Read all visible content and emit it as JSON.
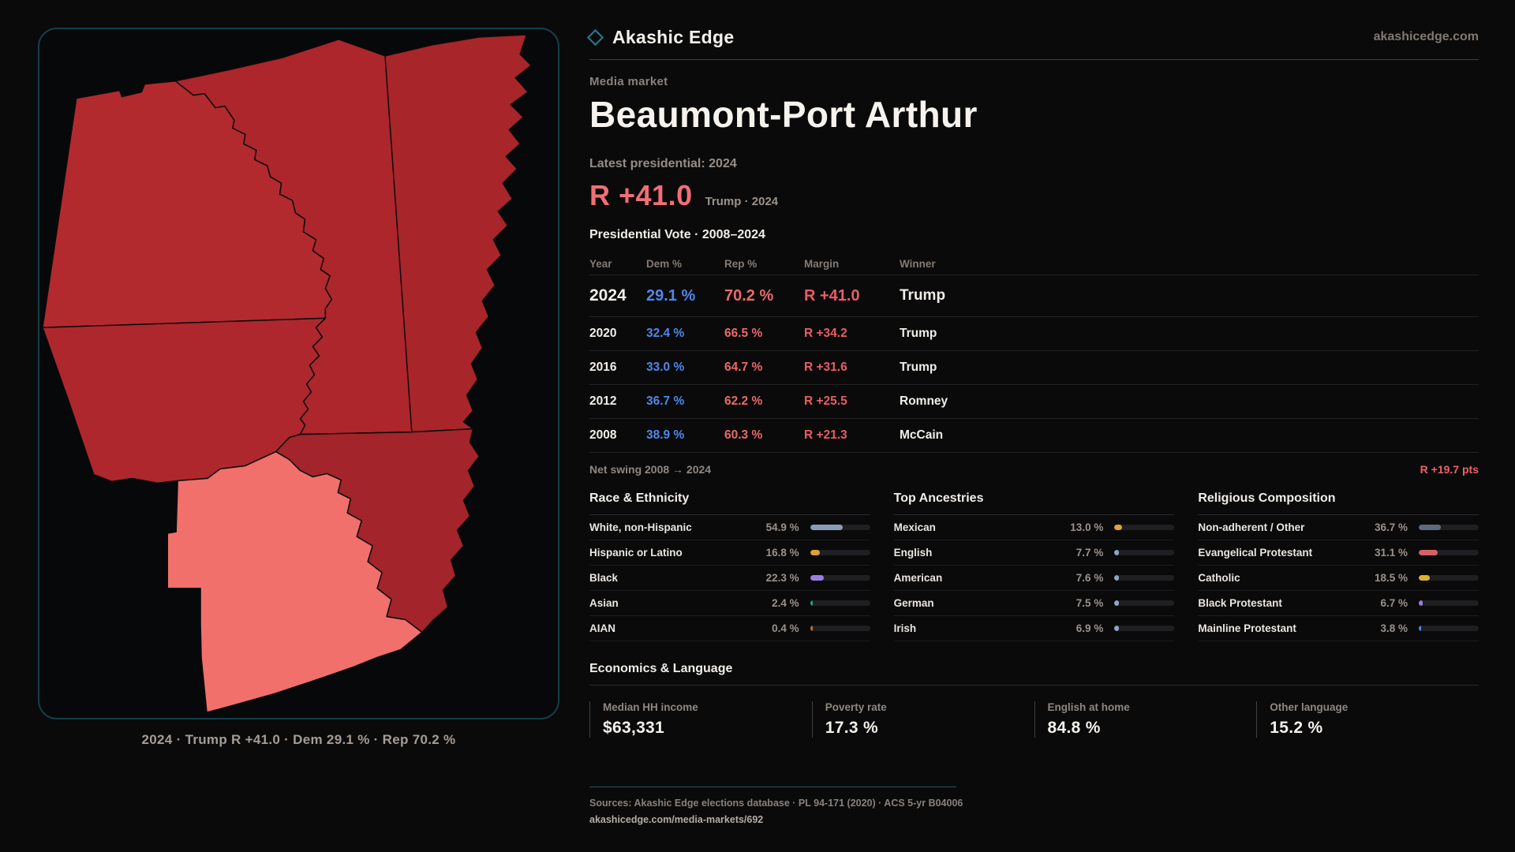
{
  "brand": {
    "name": "Akashic Edge",
    "domain": "akashicedge.com",
    "accent_teal": "#2d7a89"
  },
  "page": {
    "kicker": "Media market",
    "title": "Beaumont-Port Arthur",
    "latest_label": "Latest presidential: 2024",
    "headline_margin": "R +41.0",
    "headline_context": "Trump · 2024",
    "table_title": "Presidential Vote · 2008–2024"
  },
  "map": {
    "caption": "2024 · Trump R +41.0 · Dem 29.1 % · Rep 70.2 %",
    "county_colors": [
      "#b32a2e",
      "#ac262b",
      "#a8252a",
      "#ae272c",
      "#a3242a",
      "#f1706b"
    ]
  },
  "vote_table": {
    "columns": [
      "Year",
      "Dem %",
      "Rep %",
      "Margin",
      "Winner"
    ],
    "rows": [
      {
        "year": "2024",
        "dem": "29.1 %",
        "rep": "70.2 %",
        "margin": "R +41.0",
        "winner": "Trump"
      },
      {
        "year": "2020",
        "dem": "32.4 %",
        "rep": "66.5 %",
        "margin": "R +34.2",
        "winner": "Trump"
      },
      {
        "year": "2016",
        "dem": "33.0 %",
        "rep": "64.7 %",
        "margin": "R +31.6",
        "winner": "Trump"
      },
      {
        "year": "2012",
        "dem": "36.7 %",
        "rep": "62.2 %",
        "margin": "R +25.5",
        "winner": "Romney"
      },
      {
        "year": "2008",
        "dem": "38.9 %",
        "rep": "60.3 %",
        "margin": "R +21.3",
        "winner": "McCain"
      }
    ],
    "net_swing_label": "Net swing 2008 → 2024",
    "net_swing_value": "R +19.7 pts"
  },
  "race": {
    "title": "Race & Ethnicity",
    "rows": [
      {
        "label": "White, non-Hispanic",
        "value": "54.9 %",
        "pct": 54.9,
        "color": "#8b9cb8"
      },
      {
        "label": "Hispanic or Latino",
        "value": "16.8 %",
        "pct": 16.8,
        "color": "#dfa03b"
      },
      {
        "label": "Black",
        "value": "22.3 %",
        "pct": 22.3,
        "color": "#9c7ee2"
      },
      {
        "label": "Asian",
        "value": "2.4 %",
        "pct": 2.4,
        "color": "#27a186"
      },
      {
        "label": "AIAN",
        "value": "0.4 %",
        "pct": 0.4,
        "color": "#bf7030"
      }
    ]
  },
  "ancestries": {
    "title": "Top Ancestries",
    "rows": [
      {
        "label": "Mexican",
        "value": "13.0 %",
        "pct": 13.0,
        "color": "#dfa03b"
      },
      {
        "label": "English",
        "value": "7.7 %",
        "pct": 7.7,
        "color": "#8fa6c4"
      },
      {
        "label": "American",
        "value": "7.6 %",
        "pct": 7.6,
        "color": "#8fa6c4"
      },
      {
        "label": "German",
        "value": "7.5 %",
        "pct": 7.5,
        "color": "#8fa6c4"
      },
      {
        "label": "Irish",
        "value": "6.9 %",
        "pct": 6.9,
        "color": "#8fa6c4"
      }
    ]
  },
  "religion": {
    "title": "Religious Composition",
    "rows": [
      {
        "label": "Non-adherent / Other",
        "value": "36.7 %",
        "pct": 36.7,
        "color": "#5d6a7e"
      },
      {
        "label": "Evangelical Protestant",
        "value": "31.1 %",
        "pct": 31.1,
        "color": "#d85f63"
      },
      {
        "label": "Catholic",
        "value": "18.5 %",
        "pct": 18.5,
        "color": "#ddb033"
      },
      {
        "label": "Black Protestant",
        "value": "6.7 %",
        "pct": 6.7,
        "color": "#9c7ee2"
      },
      {
        "label": "Mainline Protestant",
        "value": "3.8 %",
        "pct": 3.8,
        "color": "#4f86e8"
      }
    ]
  },
  "economics": {
    "title": "Economics & Language",
    "stats": [
      {
        "label": "Median HH income",
        "value": "$63,331"
      },
      {
        "label": "Poverty rate",
        "value": "17.3 %"
      },
      {
        "label": "English at home",
        "value": "84.8 %"
      },
      {
        "label": "Other language",
        "value": "15.2 %"
      }
    ]
  },
  "footer": {
    "sources": "Sources: Akashic Edge elections database · PL 94-171 (2020) · ACS 5-yr B04006",
    "permalink": "akashicedge.com/media-markets/692"
  }
}
